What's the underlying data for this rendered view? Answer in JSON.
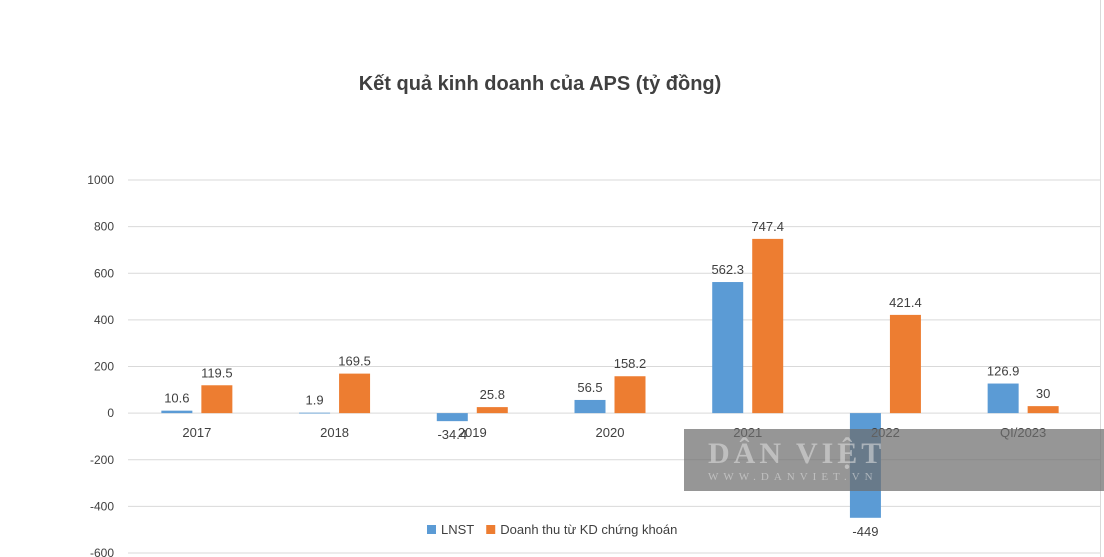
{
  "chart_data": {
    "type": "bar",
    "title": "Kết quả kinh doanh của APS (tỷ đồng)",
    "categories": [
      "2017",
      "2018",
      "2019",
      "2020",
      "2021",
      "2022",
      "QI/2023"
    ],
    "series": [
      {
        "name": "LNST",
        "color": "#5b9bd5",
        "values": [
          10.6,
          1.9,
          -34.4,
          56.5,
          562.3,
          -449,
          126.9
        ]
      },
      {
        "name": "Doanh thu từ KD chứng khoán",
        "color": "#ed7d31",
        "values": [
          119.5,
          169.5,
          25.8,
          158.2,
          747.4,
          421.4,
          30
        ]
      }
    ],
    "y_ticks": [
      "1000",
      "800",
      "600",
      "400",
      "200",
      "0",
      "-200",
      "-400",
      "-600"
    ],
    "ylim": [
      -600,
      1000
    ],
    "grid": true,
    "legend_position": "bottom"
  },
  "watermark": {
    "brand": "DÂN VIỆT",
    "site": "WWW.DANVIET.VN"
  }
}
